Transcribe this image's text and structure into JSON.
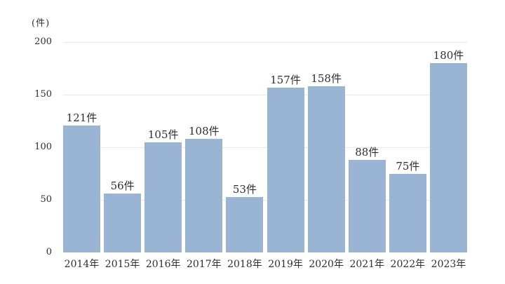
{
  "chart_data": {
    "type": "bar",
    "title": "",
    "xlabel": "",
    "ylabel": "(件)",
    "unit_label": "(件)",
    "unit_suffix": "件",
    "categories": [
      "2014年",
      "2015年",
      "2016年",
      "2017年",
      "2018年",
      "2019年",
      "2020年",
      "2021年",
      "2022年",
      "2023年"
    ],
    "values": [
      121,
      56,
      105,
      108,
      53,
      157,
      158,
      88,
      75,
      180
    ],
    "value_labels": [
      "121件",
      "56件",
      "105件",
      "108件",
      "53件",
      "157件",
      "158件",
      "88件",
      "75件",
      "180件"
    ],
    "ylim": [
      0,
      200
    ],
    "yticks": [
      0,
      50,
      100,
      150,
      200
    ],
    "grid": true,
    "legend": "none",
    "colors": {
      "bar": "#9ab5d3",
      "gridline": "#e8e8e8",
      "text": "#2e2e2e",
      "background": "#ffffff"
    }
  }
}
